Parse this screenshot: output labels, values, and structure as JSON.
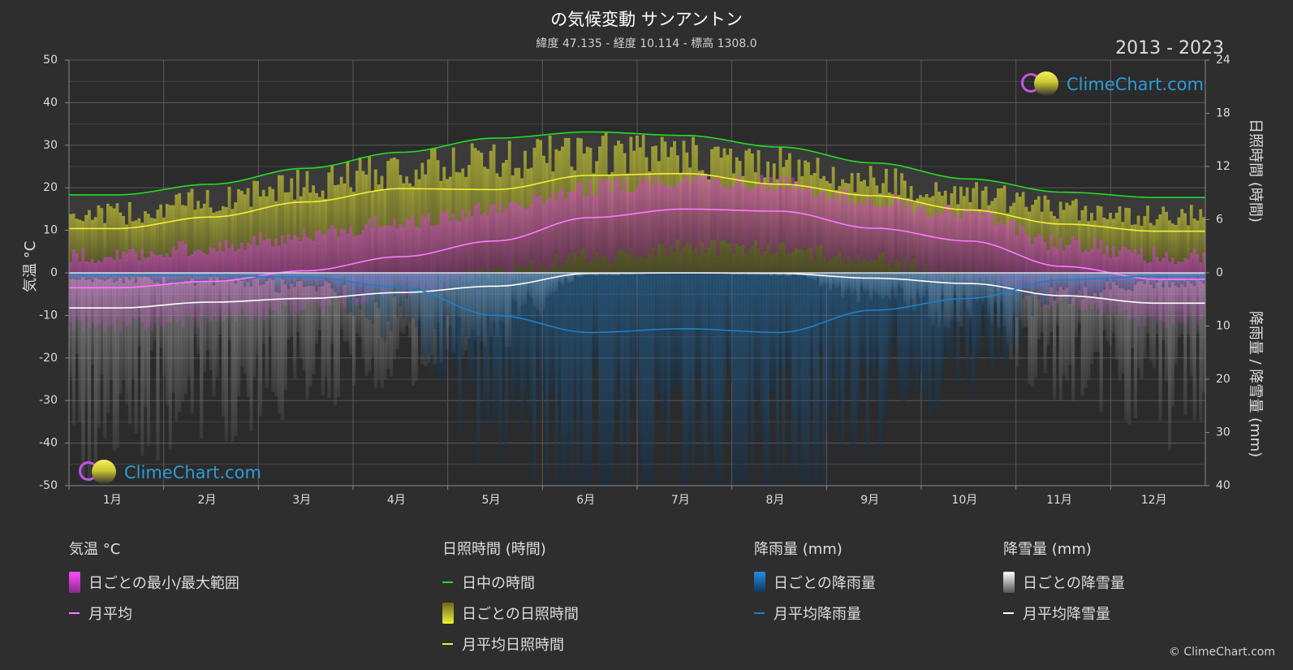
{
  "title": "の気候変動 サンアントン",
  "subtitle": "緯度 47.135 - 経度 10.114 - 標高 1308.0",
  "years": "2013 - 2023",
  "brand": "ClimeChart.com",
  "copyright": "© ClimeChart.com",
  "colors": {
    "background": "#2e2e2e",
    "temp_range": "#e040e0",
    "temp_mean": "#ff78ff",
    "daylight": "#22dd22",
    "sunshine_fill": "#a8a832",
    "sunshine_mean": "#f0f034",
    "rain": "#1e7fc8",
    "snow": "#bbbbbb",
    "snow_mean": "#ffffff"
  },
  "chart_data": {
    "type": "line",
    "title": "の気候変動 サンアントン",
    "categories": [
      "1月",
      "2月",
      "3月",
      "4月",
      "5月",
      "6月",
      "7月",
      "8月",
      "9月",
      "10月",
      "11月",
      "12月"
    ],
    "axes": {
      "temperature": {
        "label": "気温 °C",
        "range": [
          -50,
          50
        ],
        "ticks": [
          50,
          40,
          30,
          20,
          10,
          0,
          -10,
          -20,
          -30,
          -40,
          -50
        ]
      },
      "sunshine": {
        "label": "日照時間 (時間)",
        "range": [
          0,
          24
        ],
        "ticks": [
          24,
          18,
          12,
          6,
          0
        ]
      },
      "precipitation": {
        "label": "降雨量 / 降雪量 (mm)",
        "range": [
          0,
          40
        ],
        "ticks": [
          0,
          10,
          20,
          30,
          40
        ],
        "inverted": true
      }
    },
    "series": [
      {
        "name": "日中の時間",
        "axis": "sunshine",
        "values": [
          8.8,
          10.0,
          11.8,
          13.6,
          15.2,
          15.9,
          15.5,
          14.2,
          12.4,
          10.6,
          9.1,
          8.5
        ]
      },
      {
        "name": "月平均日照時間",
        "axis": "sunshine",
        "values": [
          5.0,
          6.3,
          8.0,
          9.5,
          9.4,
          11.0,
          11.2,
          10.0,
          8.7,
          7.1,
          5.5,
          4.7
        ]
      },
      {
        "name": "月平均",
        "axis": "temperature",
        "values": [
          -3.5,
          -2.0,
          0.5,
          3.8,
          7.5,
          13.0,
          15.0,
          14.5,
          10.5,
          7.5,
          1.5,
          -1.5
        ]
      },
      {
        "name": "月平均降雨量",
        "axis": "precipitation",
        "values": [
          0.4,
          0.5,
          0.8,
          2.7,
          8.0,
          11.2,
          10.5,
          11.2,
          7.0,
          4.8,
          1.3,
          0.6
        ]
      },
      {
        "name": "月平均降雪量",
        "axis": "precipitation",
        "values": [
          6.6,
          5.5,
          4.8,
          3.7,
          2.5,
          0.1,
          0.0,
          0.1,
          1.0,
          2.0,
          4.3,
          5.7
        ]
      },
      {
        "name": "日ごとの最小/最大範囲",
        "axis": "temperature",
        "min": [
          -12,
          -11,
          -8,
          -4,
          0,
          4,
          6,
          6,
          3,
          -1,
          -7,
          -11
        ],
        "max": [
          4,
          6,
          9,
          12,
          15,
          20,
          22,
          21,
          17,
          14,
          7,
          4
        ]
      },
      {
        "name": "日ごとの日照時間",
        "axis": "sunshine",
        "values": [
          7.2,
          8.8,
          10.8,
          12.5,
          13.8,
          14.5,
          14.2,
          13.0,
          11.2,
          9.5,
          7.8,
          7.0
        ]
      }
    ],
    "grid": true
  },
  "legend": {
    "temperature": {
      "heading": "気温 °C",
      "items": [
        "日ごとの最小/最大範囲",
        "月平均"
      ]
    },
    "sunshine": {
      "heading": "日照時間 (時間)",
      "items": [
        "日中の時間",
        "日ごとの日照時間",
        "月平均日照時間"
      ]
    },
    "rain": {
      "heading": "降雨量 (mm)",
      "items": [
        "日ごとの降雨量",
        "月平均降雨量"
      ]
    },
    "snow": {
      "heading": "降雪量 (mm)",
      "items": [
        "日ごとの降雪量",
        "月平均降雪量"
      ]
    }
  }
}
